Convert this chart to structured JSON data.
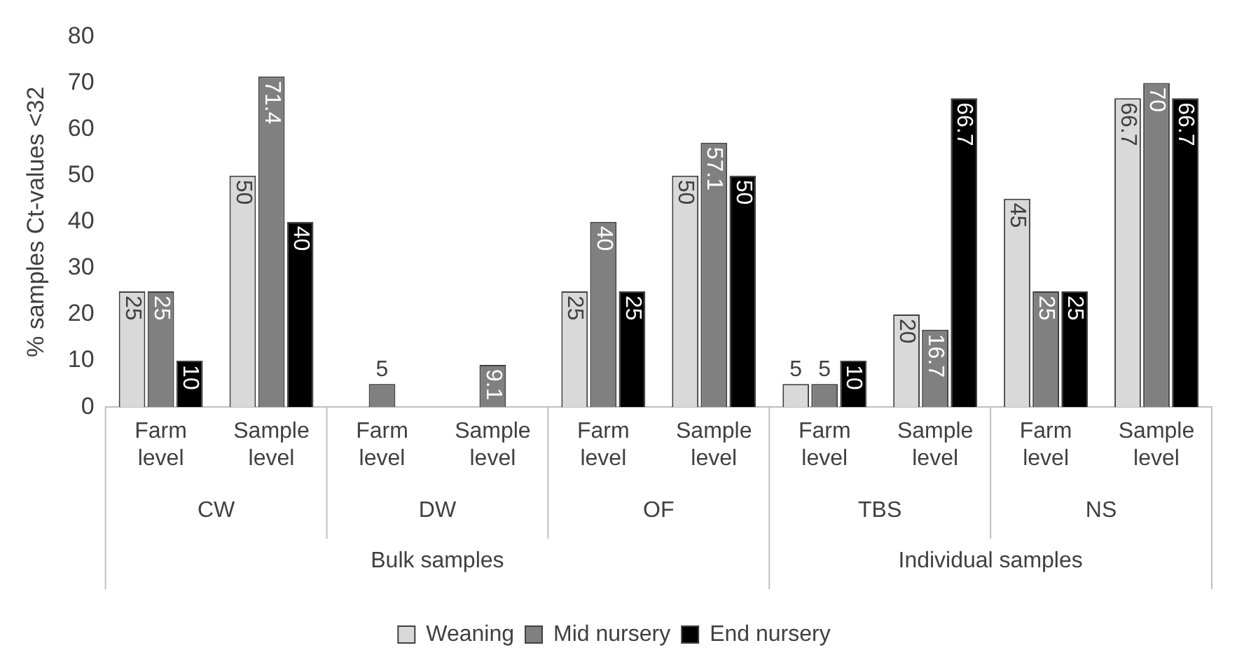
{
  "chart_data": {
    "type": "bar",
    "ylabel": "% samples Ct-values <32",
    "categories": [
      "Farm level",
      "Sample level",
      "Farm level",
      "Sample level",
      "Farm level",
      "Sample level",
      "Farm level",
      "Sample level",
      "Farm level",
      "Sample level"
    ],
    "series": [
      {
        "name": "Weaning",
        "color": "#d9d9d9",
        "values": [
          25,
          50,
          0,
          0,
          25,
          50,
          5,
          20,
          45,
          66.7
        ],
        "value_labels": [
          "25",
          "50",
          null,
          null,
          "25",
          "50",
          "5",
          "20",
          "45",
          "66.7"
        ]
      },
      {
        "name": "Mid nursery",
        "color": "#808080",
        "values": [
          25,
          71.4,
          5,
          9.1,
          40,
          57.1,
          5,
          16.7,
          25,
          70
        ],
        "value_labels": [
          "25",
          "71.4",
          "5",
          "9.1",
          "40",
          "57.1",
          "5",
          "16.7",
          "25",
          "70"
        ]
      },
      {
        "name": "End nursery",
        "color": "#000000",
        "values": [
          10,
          40,
          0,
          0,
          25,
          50,
          10,
          66.7,
          25,
          66.7
        ],
        "value_labels": [
          "10",
          "40",
          null,
          null,
          "25",
          "50",
          "10",
          "66.7",
          "25",
          "66.7"
        ]
      }
    ],
    "annotations": [
      "CW",
      "DW",
      "OF",
      "TBS",
      "NS",
      "Bulk samples",
      "Individual samples"
    ],
    "ylim": [
      0,
      80
    ],
    "yticks": [
      0,
      10,
      20,
      30,
      40,
      50,
      60,
      70,
      80
    ],
    "grid": false,
    "legend": "bottom"
  }
}
